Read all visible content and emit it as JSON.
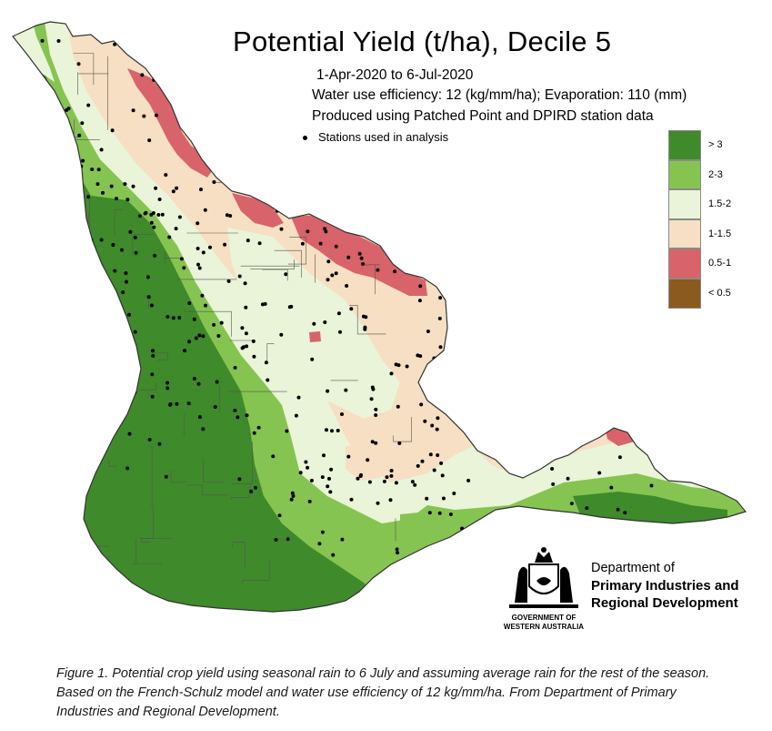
{
  "map": {
    "title": "Potential Yield (t/ha), Decile  5",
    "period": "1-Apr-2020 to  6-Jul-2020",
    "parameters": "Water use efficiency: 12 (kg/mm/ha); Evaporation: 110 (mm)",
    "source_note": "Produced using Patched Point and DPIRD station data",
    "stations_label": "Stations used in analysis"
  },
  "legend": [
    {
      "label": "> 3",
      "color": "#3f8a2a"
    },
    {
      "label": "2-3",
      "color": "#86c451"
    },
    {
      "label": "1.5-2",
      "color": "#eaf4d8"
    },
    {
      "label": "1-1.5",
      "color": "#f6dfc2"
    },
    {
      "label": "0.5-1",
      "color": "#d9636a"
    },
    {
      "label": "< 0.5",
      "color": "#8b5a1e"
    }
  ],
  "organisation": {
    "line1": "Department of",
    "line2": "Primary Industries and",
    "line3": "Regional Development",
    "gov_line1": "GOVERNMENT OF",
    "gov_line2": "WESTERN AUSTRALIA"
  },
  "caption": "Figure 1. Potential crop yield using seasonal rain to 6 July and assuming average rain for the rest of the season. Based on the French-Schulz model and water use efficiency of 12 kg/mm/ha. From Department of Primary Industries and Regional Development."
}
